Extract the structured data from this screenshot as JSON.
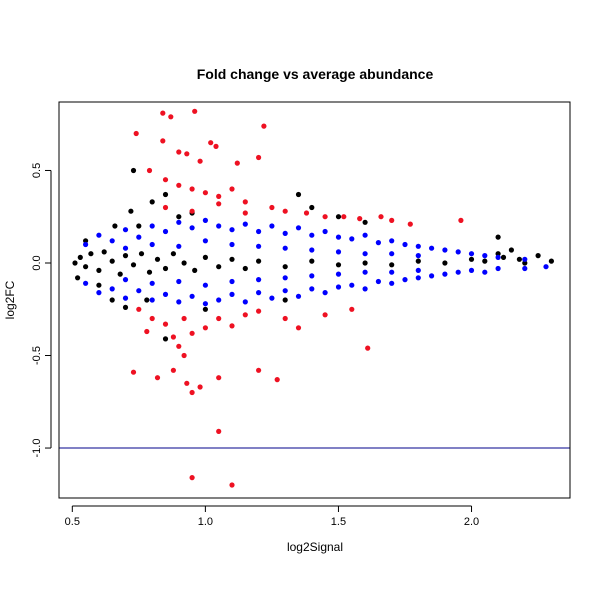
{
  "chart_data": {
    "type": "scatter",
    "title": "Fold change vs average abundance",
    "xlabel": "log2Signal",
    "ylabel": "log2FC",
    "xlim": [
      0.45,
      2.37
    ],
    "ylim": [
      -1.27,
      0.87
    ],
    "x_ticks": [
      0.5,
      1.0,
      1.5,
      2.0
    ],
    "x_tick_labels": [
      "0.5",
      "1.0",
      "1.5",
      "2.0"
    ],
    "y_ticks": [
      0.5,
      0.0,
      -0.5,
      -1.0
    ],
    "y_tick_labels": [
      "0.5",
      "0.0",
      "-0.5",
      "-1.0"
    ],
    "hline": -1.0,
    "colors": {
      "blue": "#0000ff",
      "red": "#ee1122",
      "black": "#000000",
      "hline": "#00008b"
    },
    "series": [
      {
        "color": "black",
        "points": [
          [
            0.51,
            0.0
          ],
          [
            0.53,
            0.03
          ],
          [
            0.55,
            -0.02
          ],
          [
            0.57,
            0.05
          ],
          [
            0.6,
            -0.04
          ],
          [
            0.62,
            0.06
          ],
          [
            0.65,
            0.01
          ],
          [
            0.68,
            -0.06
          ],
          [
            0.7,
            0.04
          ],
          [
            0.73,
            -0.01
          ],
          [
            0.76,
            0.05
          ],
          [
            0.79,
            -0.05
          ],
          [
            0.82,
            0.02
          ],
          [
            0.85,
            -0.03
          ],
          [
            0.88,
            0.05
          ],
          [
            0.92,
            0.0
          ],
          [
            0.96,
            -0.04
          ],
          [
            1.0,
            0.03
          ],
          [
            1.05,
            -0.02
          ],
          [
            1.1,
            0.02
          ],
          [
            1.15,
            -0.03
          ],
          [
            1.2,
            0.01
          ],
          [
            1.3,
            -0.02
          ],
          [
            1.4,
            0.01
          ],
          [
            1.5,
            -0.01
          ],
          [
            1.6,
            0.0
          ],
          [
            1.7,
            -0.01
          ],
          [
            1.8,
            0.01
          ],
          [
            1.9,
            0.0
          ],
          [
            2.0,
            0.02
          ],
          [
            2.05,
            0.01
          ],
          [
            2.1,
            0.05
          ],
          [
            2.12,
            0.03
          ],
          [
            2.15,
            0.07
          ],
          [
            2.18,
            0.02
          ],
          [
            2.2,
            0.0
          ],
          [
            2.25,
            0.04
          ],
          [
            2.3,
            0.01
          ],
          [
            0.55,
            0.12
          ],
          [
            0.6,
            -0.12
          ],
          [
            0.66,
            0.2
          ],
          [
            0.72,
            0.28
          ],
          [
            0.73,
            0.5
          ],
          [
            0.75,
            0.2
          ],
          [
            0.8,
            0.33
          ],
          [
            0.85,
            0.37
          ],
          [
            0.9,
            0.25
          ],
          [
            0.7,
            -0.24
          ],
          [
            0.65,
            -0.2
          ],
          [
            0.78,
            -0.2
          ],
          [
            0.85,
            -0.41
          ],
          [
            0.95,
            0.27
          ],
          [
            1.0,
            -0.25
          ],
          [
            1.4,
            0.3
          ],
          [
            1.35,
            0.37
          ],
          [
            1.5,
            0.25
          ],
          [
            1.6,
            0.22
          ],
          [
            1.3,
            -0.2
          ],
          [
            2.1,
            0.14
          ],
          [
            0.52,
            -0.08
          ]
        ]
      },
      {
        "color": "blue",
        "points": [
          [
            0.55,
            0.1
          ],
          [
            0.6,
            0.15
          ],
          [
            0.65,
            0.12
          ],
          [
            0.7,
            0.18
          ],
          [
            0.75,
            0.14
          ],
          [
            0.8,
            0.2
          ],
          [
            0.85,
            0.17
          ],
          [
            0.9,
            0.22
          ],
          [
            0.95,
            0.19
          ],
          [
            1.0,
            0.23
          ],
          [
            1.05,
            0.2
          ],
          [
            1.1,
            0.18
          ],
          [
            1.15,
            0.21
          ],
          [
            1.2,
            0.17
          ],
          [
            1.25,
            0.2
          ],
          [
            1.3,
            0.16
          ],
          [
            1.35,
            0.19
          ],
          [
            1.4,
            0.15
          ],
          [
            1.45,
            0.17
          ],
          [
            1.5,
            0.14
          ],
          [
            1.55,
            0.13
          ],
          [
            1.6,
            0.15
          ],
          [
            1.65,
            0.11
          ],
          [
            1.7,
            0.12
          ],
          [
            1.75,
            0.1
          ],
          [
            1.8,
            0.09
          ],
          [
            1.85,
            0.08
          ],
          [
            1.9,
            0.07
          ],
          [
            1.95,
            0.06
          ],
          [
            2.0,
            0.05
          ],
          [
            2.05,
            0.04
          ],
          [
            2.1,
            0.03
          ],
          [
            2.2,
            0.02
          ],
          [
            2.28,
            -0.02
          ],
          [
            0.55,
            -0.11
          ],
          [
            0.6,
            -0.16
          ],
          [
            0.65,
            -0.14
          ],
          [
            0.7,
            -0.19
          ],
          [
            0.75,
            -0.15
          ],
          [
            0.8,
            -0.2
          ],
          [
            0.85,
            -0.17
          ],
          [
            0.9,
            -0.21
          ],
          [
            0.95,
            -0.18
          ],
          [
            1.0,
            -0.22
          ],
          [
            1.05,
            -0.2
          ],
          [
            1.1,
            -0.17
          ],
          [
            1.15,
            -0.21
          ],
          [
            1.2,
            -0.16
          ],
          [
            1.25,
            -0.19
          ],
          [
            1.3,
            -0.15
          ],
          [
            1.35,
            -0.18
          ],
          [
            1.4,
            -0.14
          ],
          [
            1.45,
            -0.16
          ],
          [
            1.5,
            -0.13
          ],
          [
            1.55,
            -0.12
          ],
          [
            1.6,
            -0.14
          ],
          [
            1.65,
            -0.1
          ],
          [
            1.7,
            -0.11
          ],
          [
            1.75,
            -0.09
          ],
          [
            1.8,
            -0.08
          ],
          [
            1.85,
            -0.07
          ],
          [
            1.9,
            -0.06
          ],
          [
            1.95,
            -0.05
          ],
          [
            2.0,
            -0.04
          ],
          [
            2.05,
            -0.05
          ],
          [
            2.1,
            -0.03
          ],
          [
            2.2,
            -0.03
          ],
          [
            0.7,
            0.08
          ],
          [
            0.8,
            0.1
          ],
          [
            0.9,
            0.09
          ],
          [
            1.0,
            0.12
          ],
          [
            1.1,
            0.1
          ],
          [
            1.2,
            0.09
          ],
          [
            1.3,
            0.08
          ],
          [
            1.4,
            0.07
          ],
          [
            1.5,
            0.06
          ],
          [
            1.6,
            0.05
          ],
          [
            1.7,
            0.05
          ],
          [
            1.8,
            0.04
          ],
          [
            0.7,
            -0.09
          ],
          [
            0.8,
            -0.11
          ],
          [
            0.9,
            -0.1
          ],
          [
            1.0,
            -0.12
          ],
          [
            1.1,
            -0.1
          ],
          [
            1.2,
            -0.09
          ],
          [
            1.3,
            -0.08
          ],
          [
            1.4,
            -0.07
          ],
          [
            1.5,
            -0.06
          ],
          [
            1.6,
            -0.05
          ],
          [
            1.7,
            -0.05
          ],
          [
            1.8,
            -0.04
          ]
        ]
      },
      {
        "color": "red",
        "points": [
          [
            0.84,
            0.81
          ],
          [
            0.87,
            0.79
          ],
          [
            0.96,
            0.82
          ],
          [
            1.22,
            0.74
          ],
          [
            0.74,
            0.7
          ],
          [
            0.84,
            0.66
          ],
          [
            1.02,
            0.65
          ],
          [
            1.04,
            0.63
          ],
          [
            0.9,
            0.6
          ],
          [
            0.93,
            0.59
          ],
          [
            0.98,
            0.55
          ],
          [
            1.12,
            0.54
          ],
          [
            1.2,
            0.57
          ],
          [
            0.79,
            0.5
          ],
          [
            0.85,
            0.45
          ],
          [
            0.9,
            0.42
          ],
          [
            0.95,
            0.4
          ],
          [
            1.0,
            0.38
          ],
          [
            1.05,
            0.36
          ],
          [
            1.1,
            0.4
          ],
          [
            1.15,
            0.33
          ],
          [
            1.25,
            0.3
          ],
          [
            1.3,
            0.28
          ],
          [
            1.38,
            0.27
          ],
          [
            1.45,
            0.25
          ],
          [
            1.52,
            0.25
          ],
          [
            1.58,
            0.24
          ],
          [
            1.66,
            0.25
          ],
          [
            1.7,
            0.23
          ],
          [
            1.77,
            0.21
          ],
          [
            1.96,
            0.23
          ],
          [
            0.85,
            0.3
          ],
          [
            0.95,
            0.28
          ],
          [
            1.05,
            0.32
          ],
          [
            1.15,
            0.27
          ],
          [
            0.75,
            -0.25
          ],
          [
            0.8,
            -0.3
          ],
          [
            0.85,
            -0.33
          ],
          [
            0.88,
            -0.4
          ],
          [
            0.9,
            -0.45
          ],
          [
            0.92,
            -0.5
          ],
          [
            0.95,
            -0.38
          ],
          [
            1.0,
            -0.35
          ],
          [
            1.05,
            -0.3
          ],
          [
            1.1,
            -0.34
          ],
          [
            1.15,
            -0.28
          ],
          [
            1.2,
            -0.26
          ],
          [
            1.3,
            -0.3
          ],
          [
            1.35,
            -0.35
          ],
          [
            1.45,
            -0.28
          ],
          [
            1.55,
            -0.25
          ],
          [
            1.61,
            -0.46
          ],
          [
            0.73,
            -0.59
          ],
          [
            0.82,
            -0.62
          ],
          [
            0.88,
            -0.58
          ],
          [
            0.93,
            -0.65
          ],
          [
            0.95,
            -0.7
          ],
          [
            0.98,
            -0.67
          ],
          [
            1.05,
            -0.62
          ],
          [
            1.2,
            -0.58
          ],
          [
            1.27,
            -0.63
          ],
          [
            1.05,
            -0.91
          ],
          [
            0.95,
            -1.16
          ],
          [
            1.1,
            -1.2
          ],
          [
            0.78,
            -0.37
          ],
          [
            0.92,
            -0.3
          ]
        ]
      }
    ]
  }
}
